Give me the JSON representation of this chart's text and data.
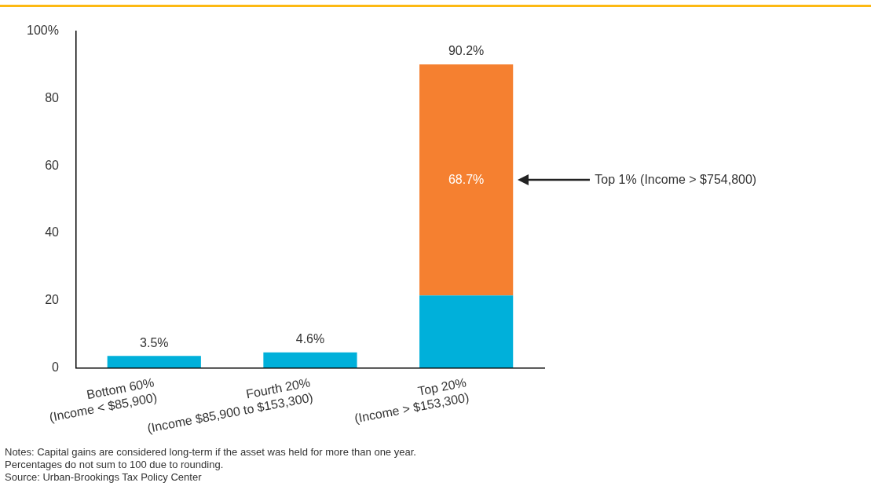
{
  "chart_data": {
    "type": "bar",
    "stacked": true,
    "categories": [
      "Bottom 60%\n(Income < $85,900)",
      "Fourth 20%\n(Income $85,900 to $153,300)",
      "Top 20%\n(Income > $153,300)"
    ],
    "series": [
      {
        "color": "#00b0da",
        "values": [
          3.5,
          4.6,
          21.5
        ]
      },
      {
        "color": "#f58030",
        "values": [
          null,
          null,
          68.7
        ],
        "value_labels": [
          null,
          null,
          "68.7%"
        ]
      }
    ],
    "totals": [
      "3.5%",
      "4.6%",
      "90.2%"
    ],
    "ylim": [
      0,
      100
    ],
    "yticks": [
      0,
      20,
      40,
      60,
      80,
      {
        "value": 100,
        "label": "100%"
      }
    ],
    "grid": false,
    "legend": false,
    "annotations": [
      "Top 1% (Income > $754,800)",
      "Notes: Capital gains are considered long-term if the asset was held for more than one year.",
      "Percentages do not sum to 100 due to rounding.",
      "Source: Urban-Brookings Tax Policy Center"
    ]
  }
}
